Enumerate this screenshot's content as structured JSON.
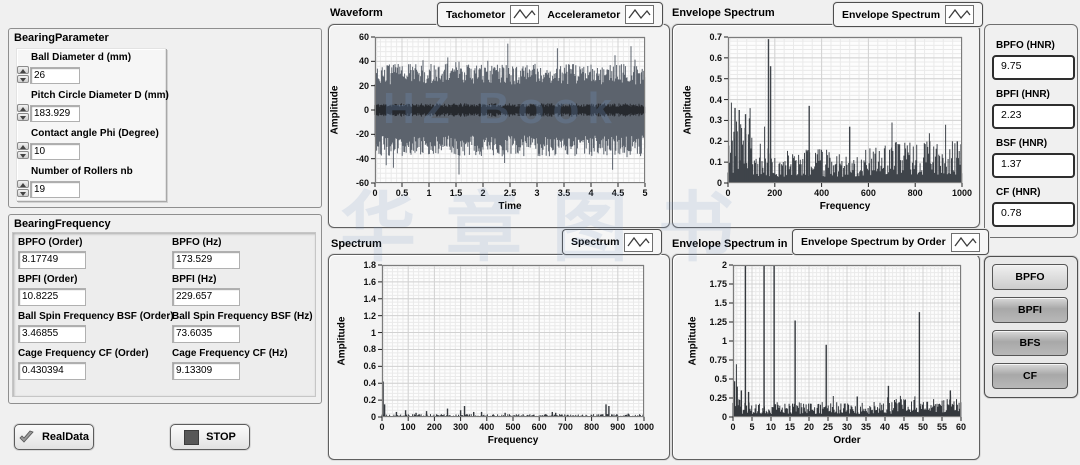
{
  "watermark": {
    "line1": "HZ Book",
    "line2": "华章图书",
    "color": "#6f94c0"
  },
  "bearing_parameter": {
    "title": "BearingParameter",
    "controls": [
      {
        "label": "Ball Diameter d (mm)",
        "value": "26"
      },
      {
        "label": "Pitch Circle Diameter D (mm)",
        "value": "183.929"
      },
      {
        "label": "Contact angle Phi (Degree)",
        "value": "10"
      },
      {
        "label": "Number of Rollers nb",
        "value": "19"
      }
    ]
  },
  "bearing_frequency": {
    "title": "BearingFrequency",
    "fields": [
      {
        "label": "BPFO (Order)",
        "value": "8.17749"
      },
      {
        "label": "BPFO (Hz)",
        "value": "173.529"
      },
      {
        "label": "BPFI (Order)",
        "value": "10.8225"
      },
      {
        "label": "BPFI (Hz)",
        "value": "229.657"
      },
      {
        "label": "Ball Spin Frequency BSF (Order)",
        "value": "3.46855"
      },
      {
        "label": "Ball Spin Frequency BSF (Hz)",
        "value": "73.6035"
      },
      {
        "label": "Cage Frequency CF (Order)",
        "value": "0.430394"
      },
      {
        "label": "Cage Frequency CF (Hz)",
        "value": "9.13309"
      }
    ]
  },
  "action_buttons": {
    "real_data": "RealData",
    "stop": "STOP"
  },
  "hnr_panel": {
    "items": [
      {
        "label": "BPFO (HNR)",
        "value": "9.75"
      },
      {
        "label": "BPFI (HNR)",
        "value": "2.23"
      },
      {
        "label": "BSF (HNR)",
        "value": "1.37"
      },
      {
        "label": "CF (HNR)",
        "value": "0.78"
      }
    ]
  },
  "fault_buttons": [
    {
      "label": "BPFO"
    },
    {
      "label": "BPFI"
    },
    {
      "label": "BFS"
    },
    {
      "label": "CF"
    }
  ],
  "chart_data": [
    {
      "id": "waveform",
      "type": "line",
      "panel_label": "Waveform",
      "legend": [
        "Tachometor",
        "Accelerametor"
      ],
      "xlabel": "Time",
      "ylabel": "Amplitude",
      "xlim": [
        0,
        5
      ],
      "ylim": [
        -60,
        60
      ],
      "grid": true,
      "x_minor": 0.1,
      "y_minor": 4,
      "xticks": [
        {
          "v": 0,
          "l": "0"
        },
        {
          "v": 0.5,
          "l": "0.5"
        },
        {
          "v": 1,
          "l": "1"
        },
        {
          "v": 1.5,
          "l": "1.5"
        },
        {
          "v": 2,
          "l": "2"
        },
        {
          "v": 2.5,
          "l": "2.5"
        },
        {
          "v": 3,
          "l": "3"
        },
        {
          "v": 3.5,
          "l": "3.5"
        },
        {
          "v": 4,
          "l": "4"
        },
        {
          "v": 4.5,
          "l": "4.5"
        },
        {
          "v": 5,
          "l": "5"
        }
      ],
      "yticks": [
        {
          "v": 60,
          "l": "60"
        },
        {
          "v": 40,
          "l": "40"
        },
        {
          "v": 20,
          "l": "20"
        },
        {
          "v": 0,
          "l": "0"
        },
        {
          "v": -20,
          "l": "-20"
        },
        {
          "v": -40,
          "l": "-40"
        },
        {
          "v": -60,
          "l": "-60"
        }
      ],
      "series": [
        {
          "name": "Accelerametor",
          "kind": "noise_mass",
          "base": 21,
          "jag": 17,
          "spike_max": 58,
          "color": "#5c636d",
          "seed": 7
        },
        {
          "name": "Tachometor",
          "kind": "uniform_band",
          "amp": 5.5,
          "color": "#26292e",
          "seed": 11
        }
      ]
    },
    {
      "id": "envelope_spectrum",
      "type": "spectrum",
      "panel_label": "Envelope Spectrum",
      "legend": [
        "Envelope Spectrum"
      ],
      "xlabel": "Frequency",
      "ylabel": "Amplitude",
      "xlim": [
        0,
        1000
      ],
      "ylim": [
        0,
        0.7
      ],
      "grid": true,
      "x_minor": 40,
      "y_minor": 0.02,
      "xticks": [
        {
          "v": 0,
          "l": "0"
        },
        {
          "v": 200,
          "l": "200"
        },
        {
          "v": 400,
          "l": "400"
        },
        {
          "v": 600,
          "l": "600"
        },
        {
          "v": 800,
          "l": "800"
        },
        {
          "v": 1000,
          "l": "1000"
        }
      ],
      "yticks": [
        {
          "v": 0,
          "l": "0"
        },
        {
          "v": 0.1,
          "l": "0.1"
        },
        {
          "v": 0.2,
          "l": "0.2"
        },
        {
          "v": 0.3,
          "l": "0.3"
        },
        {
          "v": 0.4,
          "l": "0.4"
        },
        {
          "v": 0.5,
          "l": "0.5"
        },
        {
          "v": 0.6,
          "l": "0.6"
        },
        {
          "v": 0.7,
          "l": "0.7"
        }
      ],
      "noise": [
        {
          "from": 0,
          "to": 110,
          "min": 0.04,
          "max": 0.3
        },
        {
          "from": 110,
          "to": 620,
          "min": 0.03,
          "max": 0.17
        },
        {
          "from": 620,
          "to": 1000,
          "min": 0.04,
          "max": 0.2
        }
      ],
      "peaks": [
        {
          "x": 30,
          "v": 0.36
        },
        {
          "x": 48,
          "v": 0.35
        },
        {
          "x": 75,
          "v": 0.33
        },
        {
          "x": 92,
          "v": 0.31
        },
        {
          "x": 173,
          "v": 0.69
        },
        {
          "x": 182,
          "v": 0.56
        },
        {
          "x": 347,
          "v": 0.37
        },
        {
          "x": 520,
          "v": 0.27
        },
        {
          "x": 700,
          "v": 0.17
        },
        {
          "x": 862,
          "v": 0.2
        },
        {
          "x": 980,
          "v": 0.2
        }
      ],
      "color": "#3f444a",
      "seed": 23
    },
    {
      "id": "spectrum",
      "type": "spectrum",
      "panel_label": "Spectrum",
      "legend": [
        "Spectrum"
      ],
      "xlabel": "Frequency",
      "ylabel": "Amplitude",
      "xlim": [
        0,
        1000
      ],
      "ylim": [
        0,
        1.8
      ],
      "grid": true,
      "x_minor": 20,
      "y_minor": 0.04,
      "xticks": [
        {
          "v": 0,
          "l": "0"
        },
        {
          "v": 100,
          "l": "100"
        },
        {
          "v": 200,
          "l": "200"
        },
        {
          "v": 300,
          "l": "300"
        },
        {
          "v": 400,
          "l": "400"
        },
        {
          "v": 500,
          "l": "500"
        },
        {
          "v": 600,
          "l": "600"
        },
        {
          "v": 700,
          "l": "700"
        },
        {
          "v": 800,
          "l": "800"
        },
        {
          "v": 900,
          "l": "900"
        },
        {
          "v": 1000,
          "l": "1000"
        }
      ],
      "yticks": [
        {
          "v": 0,
          "l": "0"
        },
        {
          "v": 0.2,
          "l": "0.2"
        },
        {
          "v": 0.4,
          "l": "0.4"
        },
        {
          "v": 0.6,
          "l": "0.6"
        },
        {
          "v": 0.8,
          "l": "0.8"
        },
        {
          "v": 1,
          "l": "1"
        },
        {
          "v": 1.2,
          "l": "1.2"
        },
        {
          "v": 1.4,
          "l": "1.4"
        },
        {
          "v": 1.6,
          "l": "1.6"
        },
        {
          "v": 1.8,
          "l": "1.8"
        }
      ],
      "noise": [
        {
          "from": 0,
          "to": 1000,
          "min": 0.004,
          "max": 0.035
        }
      ],
      "peaks": [
        {
          "x": 4,
          "v": 0.42
        },
        {
          "x": 10,
          "v": 0.15
        },
        {
          "x": 55,
          "v": 0.06
        },
        {
          "x": 90,
          "v": 0.08
        },
        {
          "x": 130,
          "v": 0.05
        },
        {
          "x": 170,
          "v": 0.07
        },
        {
          "x": 250,
          "v": 0.1
        },
        {
          "x": 300,
          "v": 0.08
        },
        {
          "x": 315,
          "v": 0.13
        },
        {
          "x": 350,
          "v": 0.06
        },
        {
          "x": 380,
          "v": 0.06
        },
        {
          "x": 470,
          "v": 0.05
        },
        {
          "x": 650,
          "v": 0.06
        },
        {
          "x": 663,
          "v": 0.05
        },
        {
          "x": 855,
          "v": 0.15
        },
        {
          "x": 866,
          "v": 0.13
        },
        {
          "x": 940,
          "v": 0.04
        }
      ],
      "color": "#34383d",
      "seed": 41
    },
    {
      "id": "envelope_spectrum_order",
      "type": "spectrum",
      "panel_label": "Envelope Spectrum in order",
      "legend": [
        "Envelope Spectrum by Order"
      ],
      "xlabel": "Order",
      "ylabel": "Amplitude",
      "xlim": [
        0,
        60
      ],
      "ylim": [
        0,
        2
      ],
      "grid": true,
      "x_minor": 1,
      "y_minor": 0.05,
      "xticks": [
        {
          "v": 0,
          "l": "0"
        },
        {
          "v": 5,
          "l": "5"
        },
        {
          "v": 10,
          "l": "10"
        },
        {
          "v": 15,
          "l": "15"
        },
        {
          "v": 20,
          "l": "20"
        },
        {
          "v": 25,
          "l": "25"
        },
        {
          "v": 30,
          "l": "30"
        },
        {
          "v": 35,
          "l": "35"
        },
        {
          "v": 40,
          "l": "40"
        },
        {
          "v": 45,
          "l": "45"
        },
        {
          "v": 50,
          "l": "50"
        },
        {
          "v": 55,
          "l": "55"
        },
        {
          "v": 60,
          "l": "60"
        }
      ],
      "yticks": [
        {
          "v": 0,
          "l": "0"
        },
        {
          "v": 0.25,
          "l": "0.25"
        },
        {
          "v": 0.5,
          "l": "0.5"
        },
        {
          "v": 0.75,
          "l": "0.75"
        },
        {
          "v": 1,
          "l": "1"
        },
        {
          "v": 1.25,
          "l": "1.25"
        },
        {
          "v": 1.5,
          "l": "1.5"
        },
        {
          "v": 1.75,
          "l": "1.75"
        },
        {
          "v": 2,
          "l": "2"
        }
      ],
      "noise": [
        {
          "from": 0,
          "to": 2,
          "min": 0.08,
          "max": 0.45
        },
        {
          "from": 2,
          "to": 42,
          "min": 0.04,
          "max": 0.2
        },
        {
          "from": 42,
          "to": 60,
          "min": 0.06,
          "max": 0.24
        }
      ],
      "peaks": [
        {
          "x": 0.4,
          "v": 0.47
        },
        {
          "x": 1.1,
          "v": 0.4
        },
        {
          "x": 2.2,
          "v": 0.35
        },
        {
          "x": 3.27,
          "v": 2
        },
        {
          "x": 4.1,
          "v": 0.33
        },
        {
          "x": 8.18,
          "v": 2
        },
        {
          "x": 10.82,
          "v": 2
        },
        {
          "x": 16.35,
          "v": 1.27
        },
        {
          "x": 24.53,
          "v": 0.95
        },
        {
          "x": 32.7,
          "v": 0.27
        },
        {
          "x": 40.9,
          "v": 0.41
        },
        {
          "x": 49.05,
          "v": 1.38
        },
        {
          "x": 57.2,
          "v": 0.35
        }
      ],
      "color": "#34383d",
      "seed": 59
    }
  ]
}
